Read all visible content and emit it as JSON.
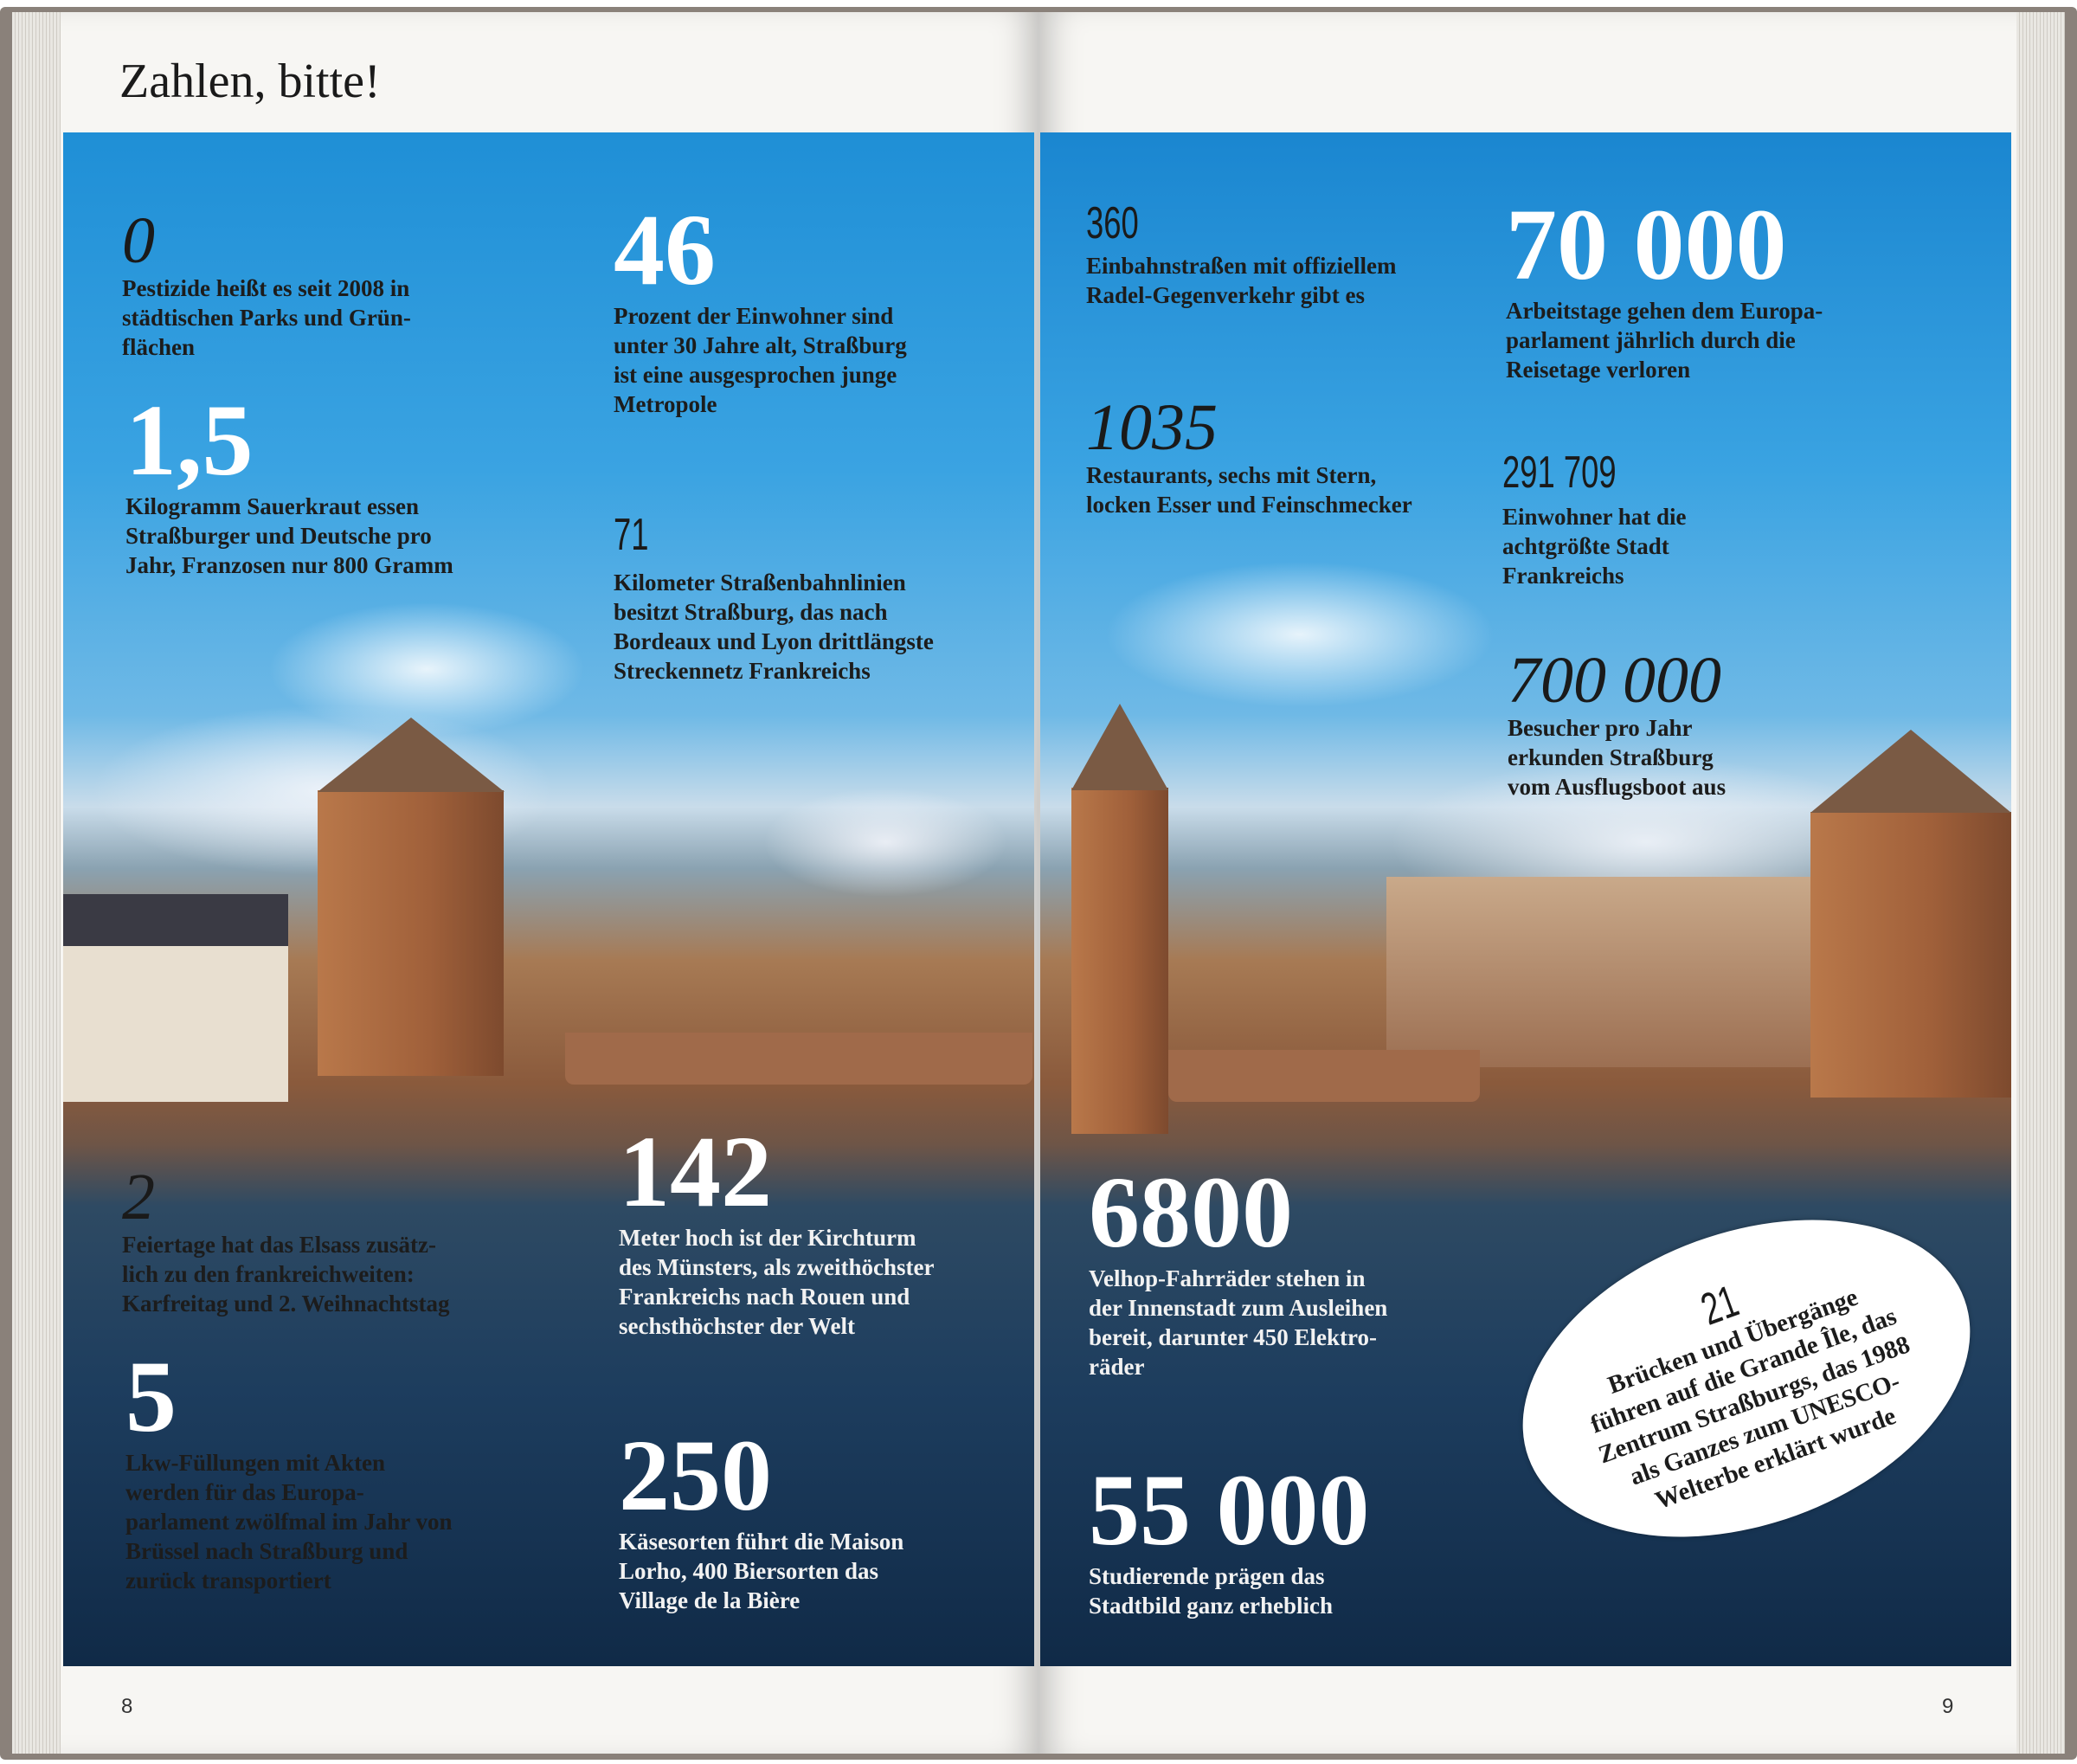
{
  "title": "Zahlen, bitte!",
  "page_numbers": {
    "left": "8",
    "right": "9"
  },
  "stats": {
    "s0": {
      "number": "0",
      "text": "Pestizide heißt es seit 2008 in\nstädtischen Parks und Grün-\nflächen"
    },
    "s1_5": {
      "number": "1,5",
      "text": "Kilogramm Sauerkraut essen\nStraßburger und Deutsche pro\nJahr, Franzosen nur 800 Gramm"
    },
    "s46": {
      "number": "46",
      "text": "Prozent der Einwohner sind\nunter 30 Jahre alt, Straßburg\nist eine ausgesprochen junge\nMetropole"
    },
    "s71": {
      "number": "71",
      "text": "Kilometer Straßenbahnlinien\nbesitzt Straßburg, das nach\nBordeaux und Lyon drittlängste\nStreckennetz Frankreichs"
    },
    "s2": {
      "number": "2",
      "text": "Feiertage hat das Elsass zusätz-\nlich zu den frankreichweiten:\nKarfreitag und 2. Weihnachtstag"
    },
    "s5": {
      "number": "5",
      "text": "Lkw-Füllungen mit Akten\nwerden für das Europa-\nparlament zwölfmal im Jahr von\nBrüssel nach Straßburg und\nzurück transportiert"
    },
    "s142": {
      "number": "142",
      "text": "Meter hoch ist der Kirchturm\ndes Münsters, als zweithöchster\nFrankreichs nach Rouen und\nsechsthöchster der Welt"
    },
    "s250": {
      "number": "250",
      "text": "Käsesorten führt die Maison\nLorho, 400 Biersorten das\nVillage de la Bière"
    },
    "s360": {
      "number": "360",
      "text": "Einbahnstraßen mit offiziellem\nRadel-Gegenverkehr gibt es"
    },
    "s70000": {
      "number": "70 000",
      "text": "Arbeitstage gehen dem Europa-\nparlament jährlich durch die\nReisetage verloren"
    },
    "s1035": {
      "number": "1035",
      "text": "Restaurants, sechs mit Stern,\nlocken Esser und Feinschmecker"
    },
    "s291709": {
      "number": "291 709",
      "text": "Einwohner hat die\nachtgrößte Stadt\nFrankreichs"
    },
    "s700000": {
      "number": "700 000",
      "text": "Besucher pro Jahr\nerkunden Straßburg\nvom Ausflugsboot aus"
    },
    "s6800": {
      "number": "6800",
      "text": "Velhop-Fahrräder stehen in\nder Innenstadt zum Ausleihen\nbereit, darunter 450 Elektro-\nräder"
    },
    "s55000": {
      "number": "55 000",
      "text": "Studierende prägen das\nStadtbild ganz erheblich"
    },
    "s21": {
      "number": "21",
      "text": "Brücken und Übergänge\nführen auf die Grande Île, das\nZentrum Straßburgs, das 1988\nals Ganzes zum UNESCO-\nWelterbe erklärt wurde"
    }
  }
}
